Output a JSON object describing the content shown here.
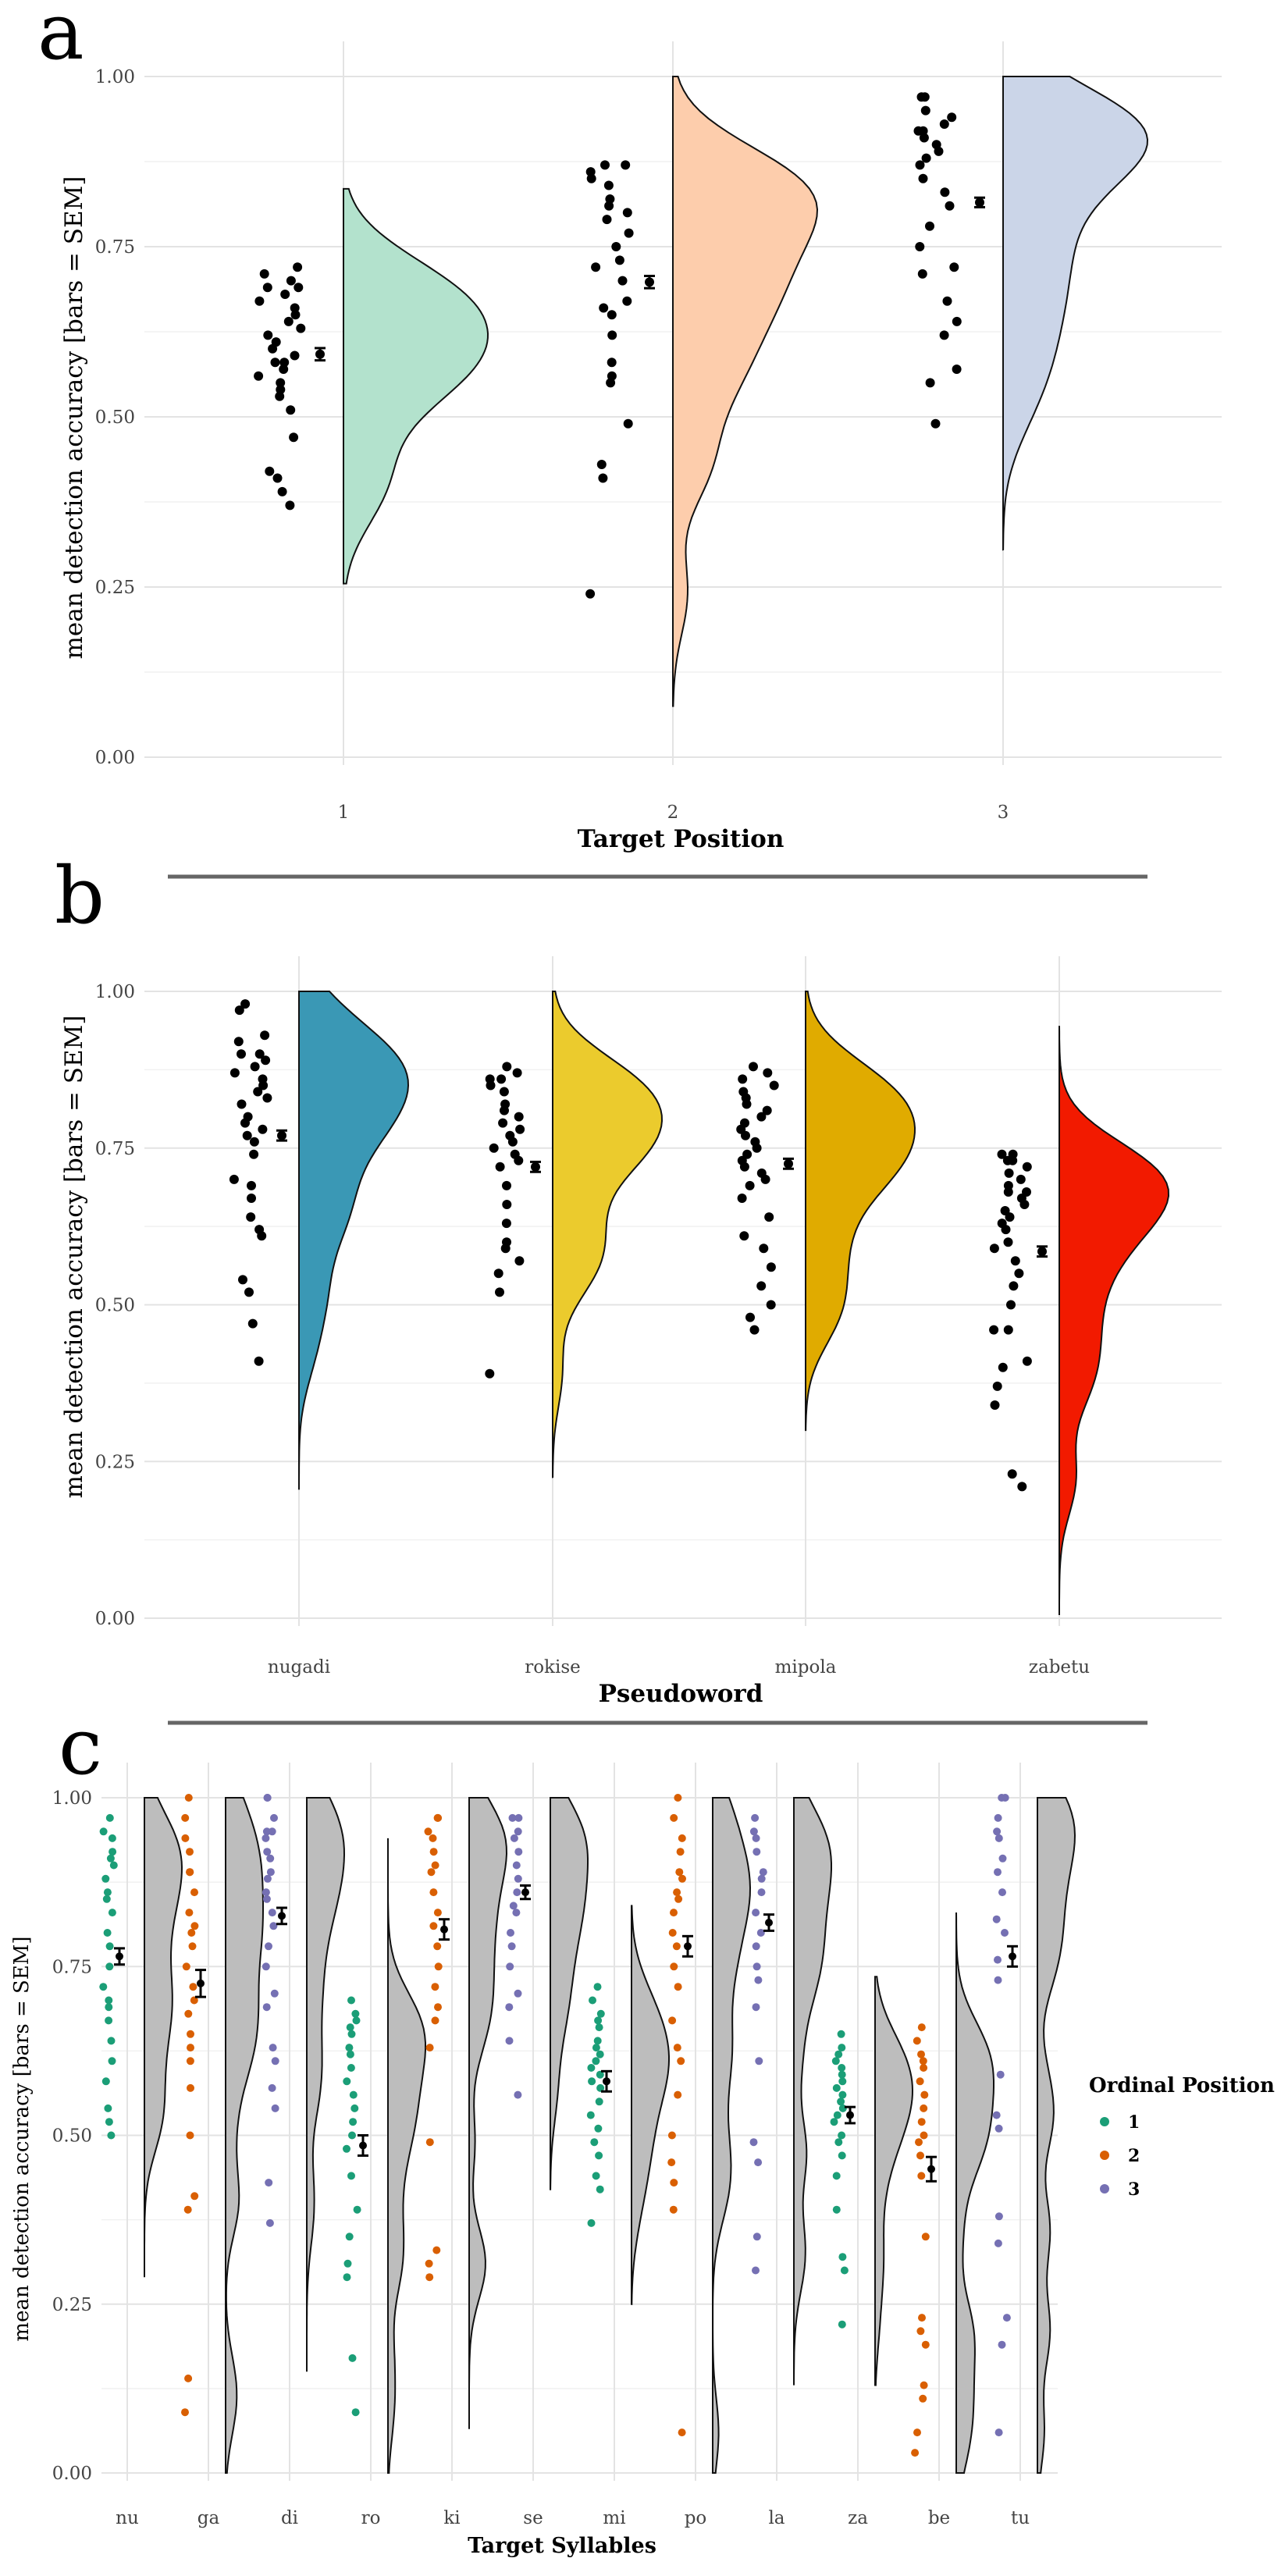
{
  "chart_data": [
    {
      "panel": "a",
      "type": "raincloud",
      "xlabel": "Target Position",
      "ylabel": "mean detection accuracy [bars = SEM]",
      "ylim": [
        0,
        1
      ],
      "yticks": [
        "0.00",
        "0.25",
        "0.50",
        "0.75",
        "1.00"
      ],
      "categories": [
        "1",
        "2",
        "3"
      ],
      "colors": [
        "#b3e2cd",
        "#fdcdac",
        "#cbd5e8"
      ],
      "means": [
        0.592,
        0.698,
        0.815
      ],
      "sem": [
        0.009,
        0.009,
        0.007
      ],
      "density_range": [
        [
          0.255,
          0.835
        ],
        [
          0.075,
          1.0
        ],
        [
          0.305,
          1.0
        ]
      ],
      "points": [
        [
          0.37,
          0.39,
          0.41,
          0.42,
          0.47,
          0.51,
          0.53,
          0.54,
          0.55,
          0.56,
          0.57,
          0.58,
          0.58,
          0.59,
          0.6,
          0.61,
          0.62,
          0.63,
          0.64,
          0.65,
          0.66,
          0.67,
          0.68,
          0.69,
          0.69,
          0.7,
          0.71,
          0.72
        ],
        [
          0.24,
          0.41,
          0.43,
          0.49,
          0.55,
          0.56,
          0.58,
          0.62,
          0.65,
          0.66,
          0.67,
          0.7,
          0.72,
          0.73,
          0.75,
          0.77,
          0.79,
          0.8,
          0.81,
          0.82,
          0.84,
          0.85,
          0.86,
          0.87,
          0.87
        ],
        [
          0.49,
          0.55,
          0.57,
          0.62,
          0.64,
          0.67,
          0.71,
          0.72,
          0.75,
          0.78,
          0.81,
          0.83,
          0.85,
          0.87,
          0.88,
          0.89,
          0.9,
          0.91,
          0.92,
          0.92,
          0.93,
          0.94,
          0.95,
          0.97,
          0.97
        ]
      ]
    },
    {
      "panel": "b",
      "type": "raincloud",
      "xlabel": "Pseudoword",
      "ylabel": "mean detection accuracy [bars = SEM]",
      "ylim": [
        0,
        1
      ],
      "yticks": [
        "0.00",
        "0.25",
        "0.50",
        "0.75",
        "1.00"
      ],
      "categories": [
        "nugadi",
        "rokise",
        "mipola",
        "zabetu"
      ],
      "colors": [
        "#3a98b5",
        "#ebcb2d",
        "#e0ab00",
        "#f21a00"
      ],
      "means": [
        0.77,
        0.72,
        0.725,
        0.585
      ],
      "sem": [
        0.008,
        0.008,
        0.008,
        0.008
      ],
      "density_range": [
        [
          0.205,
          1.0
        ],
        [
          0.225,
          1.0
        ],
        [
          0.3,
          1.0
        ],
        [
          0.005,
          0.945
        ]
      ],
      "points": [
        [
          0.41,
          0.47,
          0.52,
          0.54,
          0.61,
          0.62,
          0.64,
          0.67,
          0.69,
          0.7,
          0.74,
          0.76,
          0.77,
          0.78,
          0.79,
          0.8,
          0.82,
          0.83,
          0.84,
          0.85,
          0.86,
          0.87,
          0.88,
          0.89,
          0.9,
          0.9,
          0.92,
          0.93,
          0.97,
          0.98
        ],
        [
          0.39,
          0.52,
          0.55,
          0.57,
          0.59,
          0.6,
          0.63,
          0.66,
          0.69,
          0.72,
          0.73,
          0.74,
          0.75,
          0.76,
          0.77,
          0.78,
          0.79,
          0.8,
          0.81,
          0.82,
          0.84,
          0.85,
          0.86,
          0.86,
          0.87,
          0.88
        ],
        [
          0.46,
          0.48,
          0.5,
          0.53,
          0.56,
          0.59,
          0.61,
          0.64,
          0.67,
          0.69,
          0.7,
          0.71,
          0.72,
          0.73,
          0.74,
          0.75,
          0.76,
          0.77,
          0.78,
          0.79,
          0.8,
          0.81,
          0.82,
          0.83,
          0.84,
          0.85,
          0.86,
          0.87,
          0.88
        ],
        [
          0.21,
          0.23,
          0.34,
          0.37,
          0.4,
          0.41,
          0.46,
          0.46,
          0.5,
          0.53,
          0.55,
          0.57,
          0.59,
          0.6,
          0.62,
          0.63,
          0.64,
          0.65,
          0.66,
          0.67,
          0.68,
          0.68,
          0.69,
          0.7,
          0.71,
          0.72,
          0.73,
          0.73,
          0.74,
          0.74
        ]
      ]
    },
    {
      "panel": "c",
      "type": "raincloud",
      "xlabel": "Target Syllables",
      "ylabel": "mean detection accuracy [bars = SEM]",
      "ylim": [
        0,
        1
      ],
      "yticks": [
        "0.00",
        "0.25",
        "0.50",
        "0.75",
        "1.00"
      ],
      "categories": [
        "nu",
        "ga",
        "di",
        "ro",
        "ki",
        "se",
        "mi",
        "po",
        "la",
        "za",
        "be",
        "tu"
      ],
      "ordinal_position": [
        1,
        2,
        3,
        1,
        2,
        3,
        1,
        2,
        3,
        1,
        2,
        3
      ],
      "legend": {
        "title": "Ordinal Position",
        "entries": [
          "1",
          "2",
          "3"
        ],
        "colors": [
          "#1b9e77",
          "#d95f02",
          "#7570b3"
        ],
        "placement": "right"
      },
      "cloud_color": "#bdbdbd",
      "means": [
        0.765,
        0.725,
        0.825,
        0.485,
        0.805,
        0.86,
        0.58,
        0.78,
        0.815,
        0.53,
        0.45,
        0.765
      ],
      "sem": [
        0.012,
        0.02,
        0.012,
        0.015,
        0.015,
        0.01,
        0.015,
        0.015,
        0.012,
        0.012,
        0.018,
        0.015
      ],
      "density_range": [
        [
          0.29,
          1.0
        ],
        [
          0.0,
          1.0
        ],
        [
          0.15,
          1.0
        ],
        [
          0.0,
          0.94
        ],
        [
          0.065,
          1.0
        ],
        [
          0.42,
          1.0
        ],
        [
          0.25,
          0.84
        ],
        [
          0.0,
          1.0
        ],
        [
          0.13,
          1.0
        ],
        [
          0.13,
          0.735
        ],
        [
          0.0,
          0.83
        ],
        [
          0.0,
          1.0
        ]
      ],
      "points": [
        [
          0.5,
          0.52,
          0.54,
          0.58,
          0.61,
          0.64,
          0.67,
          0.69,
          0.7,
          0.72,
          0.75,
          0.78,
          0.8,
          0.83,
          0.85,
          0.86,
          0.88,
          0.9,
          0.91,
          0.92,
          0.94,
          0.95,
          0.97
        ],
        [
          0.09,
          0.14,
          0.39,
          0.41,
          0.5,
          0.57,
          0.61,
          0.63,
          0.65,
          0.68,
          0.7,
          0.72,
          0.75,
          0.78,
          0.8,
          0.81,
          0.83,
          0.86,
          0.89,
          0.89,
          0.92,
          0.94,
          0.97,
          1.0
        ],
        [
          0.37,
          0.43,
          0.54,
          0.57,
          0.61,
          0.63,
          0.69,
          0.71,
          0.75,
          0.78,
          0.81,
          0.83,
          0.85,
          0.86,
          0.88,
          0.89,
          0.91,
          0.92,
          0.94,
          0.95,
          0.95,
          0.97,
          1.0,
          1.0
        ],
        [
          0.09,
          0.17,
          0.29,
          0.31,
          0.35,
          0.39,
          0.44,
          0.48,
          0.5,
          0.52,
          0.54,
          0.56,
          0.58,
          0.6,
          0.62,
          0.63,
          0.65,
          0.66,
          0.67,
          0.68,
          0.7
        ],
        [
          0.29,
          0.31,
          0.33,
          0.49,
          0.63,
          0.67,
          0.69,
          0.72,
          0.75,
          0.78,
          0.81,
          0.83,
          0.86,
          0.89,
          0.9,
          0.92,
          0.94,
          0.95,
          0.97,
          0.97
        ],
        [
          0.56,
          0.64,
          0.69,
          0.71,
          0.75,
          0.78,
          0.8,
          0.83,
          0.84,
          0.86,
          0.88,
          0.9,
          0.92,
          0.94,
          0.95,
          0.97,
          0.97
        ],
        [
          0.37,
          0.42,
          0.44,
          0.47,
          0.49,
          0.51,
          0.53,
          0.55,
          0.57,
          0.58,
          0.59,
          0.6,
          0.61,
          0.62,
          0.63,
          0.64,
          0.66,
          0.67,
          0.68,
          0.7,
          0.72
        ],
        [
          0.06,
          0.39,
          0.43,
          0.46,
          0.5,
          0.56,
          0.61,
          0.63,
          0.67,
          0.72,
          0.75,
          0.78,
          0.8,
          0.83,
          0.85,
          0.86,
          0.88,
          0.89,
          0.92,
          0.94,
          0.97,
          1.0
        ],
        [
          0.3,
          0.35,
          0.46,
          0.49,
          0.61,
          0.69,
          0.73,
          0.75,
          0.78,
          0.8,
          0.83,
          0.86,
          0.88,
          0.89,
          0.92,
          0.94,
          0.95,
          0.97
        ],
        [
          0.22,
          0.3,
          0.32,
          0.39,
          0.44,
          0.47,
          0.49,
          0.5,
          0.52,
          0.53,
          0.54,
          0.55,
          0.56,
          0.57,
          0.58,
          0.59,
          0.6,
          0.61,
          0.62,
          0.63,
          0.65
        ],
        [
          0.03,
          0.06,
          0.11,
          0.13,
          0.19,
          0.21,
          0.23,
          0.35,
          0.44,
          0.47,
          0.49,
          0.5,
          0.52,
          0.54,
          0.56,
          0.58,
          0.6,
          0.61,
          0.62,
          0.64,
          0.66
        ],
        [
          0.06,
          0.19,
          0.23,
          0.34,
          0.38,
          0.51,
          0.53,
          0.59,
          0.73,
          0.76,
          0.8,
          0.82,
          0.86,
          0.89,
          0.91,
          0.94,
          0.95,
          0.97,
          1.0,
          1.0
        ]
      ]
    }
  ]
}
